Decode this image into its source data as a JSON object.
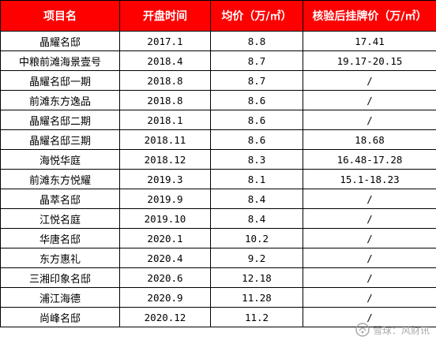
{
  "colors": {
    "header_bg": "#ff0000",
    "header_text": "#ffffff",
    "border": "#000000"
  },
  "table": {
    "headers": [
      "项目名",
      "开盘时间",
      "均价（万/㎡）",
      "核验后挂牌价（万/㎡）"
    ],
    "rows": [
      [
        "晶耀名邸",
        "2017.1",
        "8.8",
        "17.41"
      ],
      [
        "中粮前滩海景壹号",
        "2018.4",
        "8.7",
        "19.17-20.15"
      ],
      [
        "晶耀名邸一期",
        "2018.8",
        "8.7",
        "/"
      ],
      [
        "前滩东方逸品",
        "2018.8",
        "8.6",
        "/"
      ],
      [
        "晶耀名邸二期",
        "2018.1",
        "8.6",
        "/"
      ],
      [
        "晶耀名邸三期",
        "2018.11",
        "8.6",
        "18.68"
      ],
      [
        "海悦华庭",
        "2018.12",
        "8.3",
        "16.48-17.28"
      ],
      [
        "前滩东方悦耀",
        "2019.3",
        "8.1",
        "15.1-18.23"
      ],
      [
        "晶萃名邸",
        "2019.9",
        "8.4",
        "/"
      ],
      [
        "江悦名庭",
        "2019.10",
        "8.4",
        "/"
      ],
      [
        "华唐名邸",
        "2020.1",
        "10.2",
        "/"
      ],
      [
        "东方惠礼",
        "2020.4",
        "9.2",
        "/"
      ],
      [
        "三湘印象名邸",
        "2020.6",
        "12.18",
        "/"
      ],
      [
        "浦江海德",
        "2020.9",
        "11.28",
        "/"
      ],
      [
        "尚峰名邸",
        "2020.12",
        "11.2",
        "/"
      ]
    ]
  },
  "watermark": {
    "icon": "snowball-logo-icon",
    "text": "雪球：风财讯"
  }
}
